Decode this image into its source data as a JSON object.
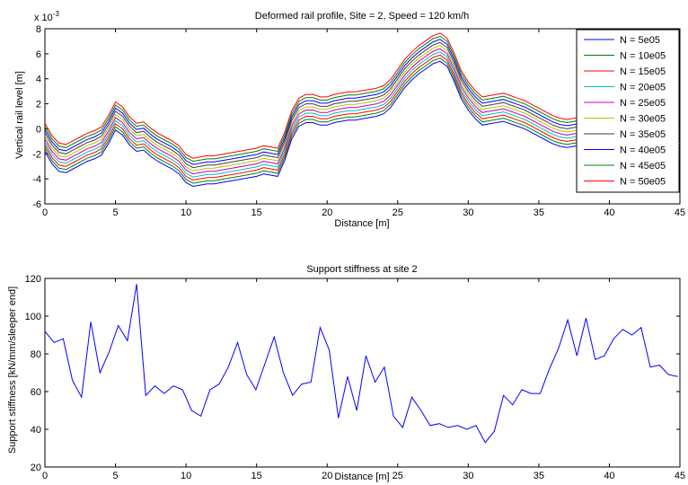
{
  "chart_data": [
    {
      "type": "line",
      "title": "Deformed rail profile, Site = 2, Speed = 120 km/h",
      "xlabel": "Distance [m]",
      "ylabel": "Vertical rail level [m]",
      "y_multiplier_label": "x 10",
      "y_multiplier_exponent": "-3",
      "xlim": [
        0,
        45
      ],
      "ylim": [
        -6,
        8
      ],
      "x_ticks": [
        "0",
        "5",
        "10",
        "15",
        "20",
        "25",
        "30",
        "35",
        "40",
        "45"
      ],
      "y_ticks": [
        "-6",
        "-4",
        "-2",
        "0",
        "2",
        "4",
        "6",
        "8"
      ],
      "grid": false,
      "legend_position": "top-right",
      "x": [
        0,
        0.5,
        1,
        1.5,
        2,
        2.5,
        3,
        3.5,
        4,
        4.5,
        5,
        5.5,
        6,
        6.5,
        7,
        7.5,
        8,
        8.5,
        9,
        9.5,
        10,
        10.5,
        11,
        11.5,
        12,
        12.5,
        13,
        13.5,
        14,
        14.5,
        15,
        15.5,
        16,
        16.5,
        17,
        17.5,
        18,
        18.5,
        19,
        19.5,
        20,
        20.5,
        21,
        21.5,
        22,
        22.5,
        23,
        23.5,
        24,
        24.5,
        25,
        25.5,
        26,
        26.5,
        27,
        27.5,
        28,
        28.5,
        29,
        29.5,
        30,
        30.5,
        31,
        31.5,
        32,
        32.5,
        33,
        33.5,
        34,
        34.5,
        35,
        35.5,
        36,
        36.5,
        37,
        37.5,
        38,
        38.5,
        39,
        39.5,
        40,
        40.5,
        41,
        41.5,
        42,
        42.5,
        43,
        43.5,
        44,
        44.5,
        45
      ],
      "base_profile": [
        -1.8,
        -2.8,
        -3.4,
        -3.5,
        -3.2,
        -2.9,
        -2.6,
        -2.4,
        -2.1,
        -1.2,
        -0.1,
        -0.5,
        -1.3,
        -1.8,
        -1.7,
        -2.2,
        -2.6,
        -2.9,
        -3.2,
        -3.6,
        -4.3,
        -4.6,
        -4.5,
        -4.4,
        -4.4,
        -4.3,
        -4.2,
        -4.1,
        -4.0,
        -3.9,
        -3.8,
        -3.6,
        -3.7,
        -3.8,
        -2.5,
        -0.8,
        0.2,
        0.5,
        0.5,
        0.3,
        0.3,
        0.5,
        0.6,
        0.7,
        0.7,
        0.8,
        0.9,
        1.0,
        1.2,
        1.7,
        2.5,
        3.3,
        3.9,
        4.4,
        4.8,
        5.2,
        5.4,
        5.0,
        3.8,
        2.4,
        1.5,
        0.8,
        0.3,
        0.4,
        0.5,
        0.6,
        0.4,
        0.2,
        0.0,
        -0.3,
        -0.6,
        -0.9,
        -1.2,
        -1.4,
        -1.5,
        -1.4,
        -1.3,
        -1.3,
        -1.4,
        -1.5,
        -1.6,
        -1.4,
        -0.8,
        -0.4,
        -1.0,
        -2.4,
        -3.2,
        -3.3,
        -3.1,
        -2.8,
        -2.4
      ],
      "series_offsets": [
        0,
        0.25,
        0.5,
        0.75,
        1.0,
        1.25,
        1.5,
        1.75,
        2.0,
        2.25
      ],
      "series": [
        {
          "name": "N = 5e05",
          "color": "#0000ff"
        },
        {
          "name": "N = 10e05",
          "color": "#008000"
        },
        {
          "name": "N = 15e05",
          "color": "#ff0000"
        },
        {
          "name": "N = 20e05",
          "color": "#00bfbf"
        },
        {
          "name": "N = 25e05",
          "color": "#bf00bf"
        },
        {
          "name": "N = 30e05",
          "color": "#bfbf00"
        },
        {
          "name": "N = 35e05",
          "color": "#404040"
        },
        {
          "name": "N = 40e05",
          "color": "#0000ff"
        },
        {
          "name": "N = 45e05",
          "color": "#008000"
        },
        {
          "name": "N = 50e05",
          "color": "#ff0000"
        }
      ]
    },
    {
      "type": "line",
      "title": "Support stiffness at site 2",
      "xlabel": "Distance [m]",
      "ylabel": "Support stiffness [kN/mm/sleeper end]",
      "xlim": [
        0,
        45
      ],
      "ylim": [
        20,
        120
      ],
      "x_ticks": [
        "0",
        "5",
        "10",
        "15",
        "20",
        "25",
        "30",
        "35",
        "40",
        "45"
      ],
      "y_ticks": [
        "20",
        "40",
        "60",
        "80",
        "100",
        "120"
      ],
      "grid": false,
      "series": [
        {
          "color": "#0000ff",
          "x": [
            0,
            0.65,
            1.3,
            1.95,
            2.6,
            3.25,
            3.9,
            4.55,
            5.2,
            5.85,
            6.5,
            7.15,
            7.8,
            8.45,
            9.1,
            9.75,
            10.4,
            11.05,
            11.7,
            12.35,
            13.0,
            13.65,
            14.3,
            14.95,
            15.6,
            16.25,
            16.9,
            17.55,
            18.2,
            18.85,
            19.5,
            20.15,
            20.8,
            21.45,
            22.1,
            22.75,
            23.4,
            24.05,
            24.7,
            25.35,
            26.0,
            26.65,
            27.3,
            27.95,
            28.6,
            29.25,
            29.9,
            30.55,
            31.2,
            31.85,
            32.5,
            33.15,
            33.8,
            34.45,
            35.1,
            35.75,
            36.4,
            37.05,
            37.7,
            38.35,
            39.0,
            39.65,
            40.3,
            40.95,
            41.6,
            42.25,
            42.9,
            43.55,
            44.2,
            44.85
          ],
          "y": [
            92,
            86,
            88,
            66,
            57,
            97,
            70,
            81,
            95,
            87,
            117,
            58,
            63,
            59,
            63,
            61,
            50,
            47,
            61,
            64,
            73,
            86,
            69,
            61,
            75,
            89,
            70,
            58,
            64,
            65,
            94,
            82,
            46,
            68,
            50,
            79,
            65,
            73,
            47,
            41,
            57,
            50,
            42,
            43,
            41,
            42,
            40,
            42,
            33,
            39,
            58,
            53,
            61,
            59,
            59,
            72,
            83,
            98,
            79,
            99,
            77,
            79,
            88,
            93,
            90,
            94,
            73,
            74,
            69,
            68
          ]
        }
      ]
    }
  ]
}
